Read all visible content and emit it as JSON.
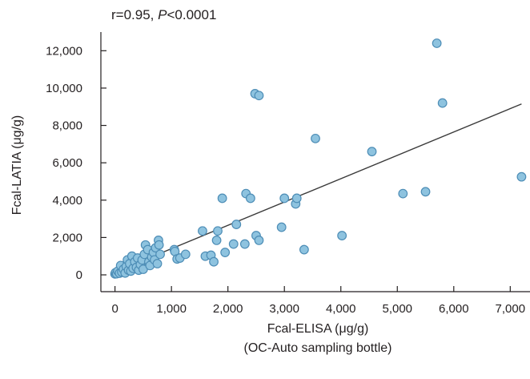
{
  "chart_data": {
    "type": "scatter",
    "title": "",
    "annotation": {
      "r_part": "r=0.95, ",
      "p_symbol": "P",
      "p_part": "<0.0001"
    },
    "xlabel": "Fcal-ELISA (μg/g)",
    "xlabel_line2": "(OC-Auto sampling bottle)",
    "ylabel": "Fcal-LATIA (μg/g)",
    "xlim": [
      -250,
      7350
    ],
    "ylim": [
      -900,
      13000
    ],
    "x_ticks": [
      0,
      1000,
      2000,
      3000,
      4000,
      5000,
      6000,
      7000
    ],
    "x_tick_labels": [
      "0",
      "1,000",
      "2,000",
      "3,000",
      "4,000",
      "5,000",
      "6,000",
      "7,000"
    ],
    "y_ticks": [
      0,
      2000,
      4000,
      6000,
      8000,
      10000,
      12000
    ],
    "y_tick_labels": [
      "0",
      "2,000",
      "4,000",
      "6,000",
      "8,000",
      "10,000",
      "12,000"
    ],
    "grid": false,
    "legend": "none",
    "marker_color": "#8ec3df",
    "marker_edge": "#4d8db6",
    "line_color": "#3a3a3a",
    "regression_line": {
      "x": [
        0,
        7200
      ],
      "y": [
        150,
        9150
      ]
    },
    "points": [
      [
        0,
        50
      ],
      [
        10,
        120
      ],
      [
        30,
        60
      ],
      [
        50,
        200
      ],
      [
        80,
        90
      ],
      [
        100,
        500
      ],
      [
        120,
        150
      ],
      [
        150,
        300
      ],
      [
        180,
        100
      ],
      [
        200,
        450
      ],
      [
        220,
        800
      ],
      [
        240,
        250
      ],
      [
        260,
        600
      ],
      [
        280,
        200
      ],
      [
        300,
        1000
      ],
      [
        320,
        350
      ],
      [
        350,
        700
      ],
      [
        380,
        400
      ],
      [
        400,
        900
      ],
      [
        420,
        250
      ],
      [
        450,
        550
      ],
      [
        480,
        800
      ],
      [
        500,
        300
      ],
      [
        520,
        1100
      ],
      [
        540,
        1600
      ],
      [
        580,
        1350
      ],
      [
        600,
        700
      ],
      [
        620,
        500
      ],
      [
        650,
        950
      ],
      [
        680,
        1200
      ],
      [
        700,
        800
      ],
      [
        720,
        1450
      ],
      [
        750,
        600
      ],
      [
        770,
        1850
      ],
      [
        780,
        1600
      ],
      [
        800,
        1100
      ],
      [
        1050,
        1350
      ],
      [
        1060,
        1250
      ],
      [
        1100,
        850
      ],
      [
        1150,
        900
      ],
      [
        1250,
        1100
      ],
      [
        1550,
        2350
      ],
      [
        1600,
        1000
      ],
      [
        1700,
        1050
      ],
      [
        1750,
        700
      ],
      [
        1800,
        1850
      ],
      [
        1820,
        2350
      ],
      [
        1900,
        4100
      ],
      [
        1950,
        1200
      ],
      [
        2100,
        1650
      ],
      [
        2150,
        2700
      ],
      [
        2300,
        1650
      ],
      [
        2320,
        4350
      ],
      [
        2400,
        4100
      ],
      [
        2480,
        9700
      ],
      [
        2500,
        2100
      ],
      [
        2550,
        1850
      ],
      [
        2550,
        9600
      ],
      [
        2950,
        2550
      ],
      [
        3000,
        4100
      ],
      [
        3200,
        3800
      ],
      [
        3220,
        4100
      ],
      [
        3350,
        1350
      ],
      [
        3550,
        7300
      ],
      [
        4020,
        2100
      ],
      [
        4550,
        6600
      ],
      [
        5100,
        4350
      ],
      [
        5500,
        4450
      ],
      [
        5700,
        12400
      ],
      [
        5800,
        9200
      ],
      [
        7200,
        5250
      ]
    ]
  }
}
